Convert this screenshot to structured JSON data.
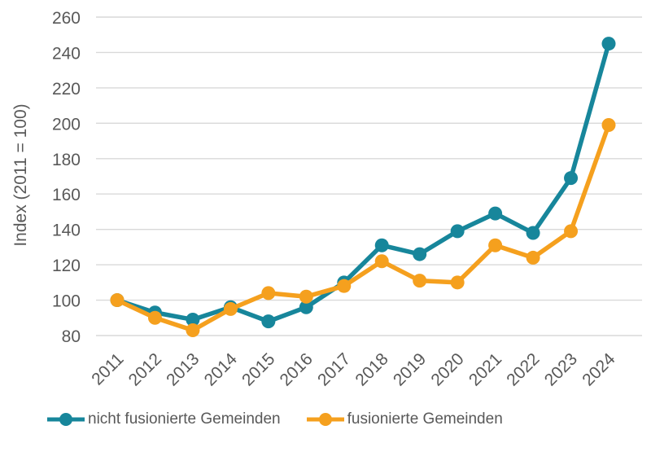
{
  "chart_data": {
    "type": "line",
    "title": "",
    "xlabel": "",
    "ylabel": "Index (2011 = 100)",
    "ylim": [
      80,
      260
    ],
    "ytick_step": 20,
    "grid": "horizontal-only",
    "legend_position": "bottom",
    "categories": [
      "2011",
      "2012",
      "2013",
      "2014",
      "2015",
      "2016",
      "2017",
      "2018",
      "2019",
      "2020",
      "2021",
      "2022",
      "2023",
      "2024"
    ],
    "series": [
      {
        "name": "nicht fusionierte Gemeinden",
        "color": "#17869B",
        "values": [
          100,
          93,
          89,
          96,
          88,
          96,
          110,
          131,
          126,
          139,
          149,
          138,
          169,
          245
        ]
      },
      {
        "name": "fusionierte Gemeinden",
        "color": "#F5A01E",
        "values": [
          100,
          90,
          83,
          95,
          104,
          102,
          108,
          122,
          111,
          110,
          131,
          124,
          139,
          199
        ]
      }
    ]
  },
  "style": {
    "grid_color": "#D9D9D9",
    "text_color": "#595959"
  }
}
